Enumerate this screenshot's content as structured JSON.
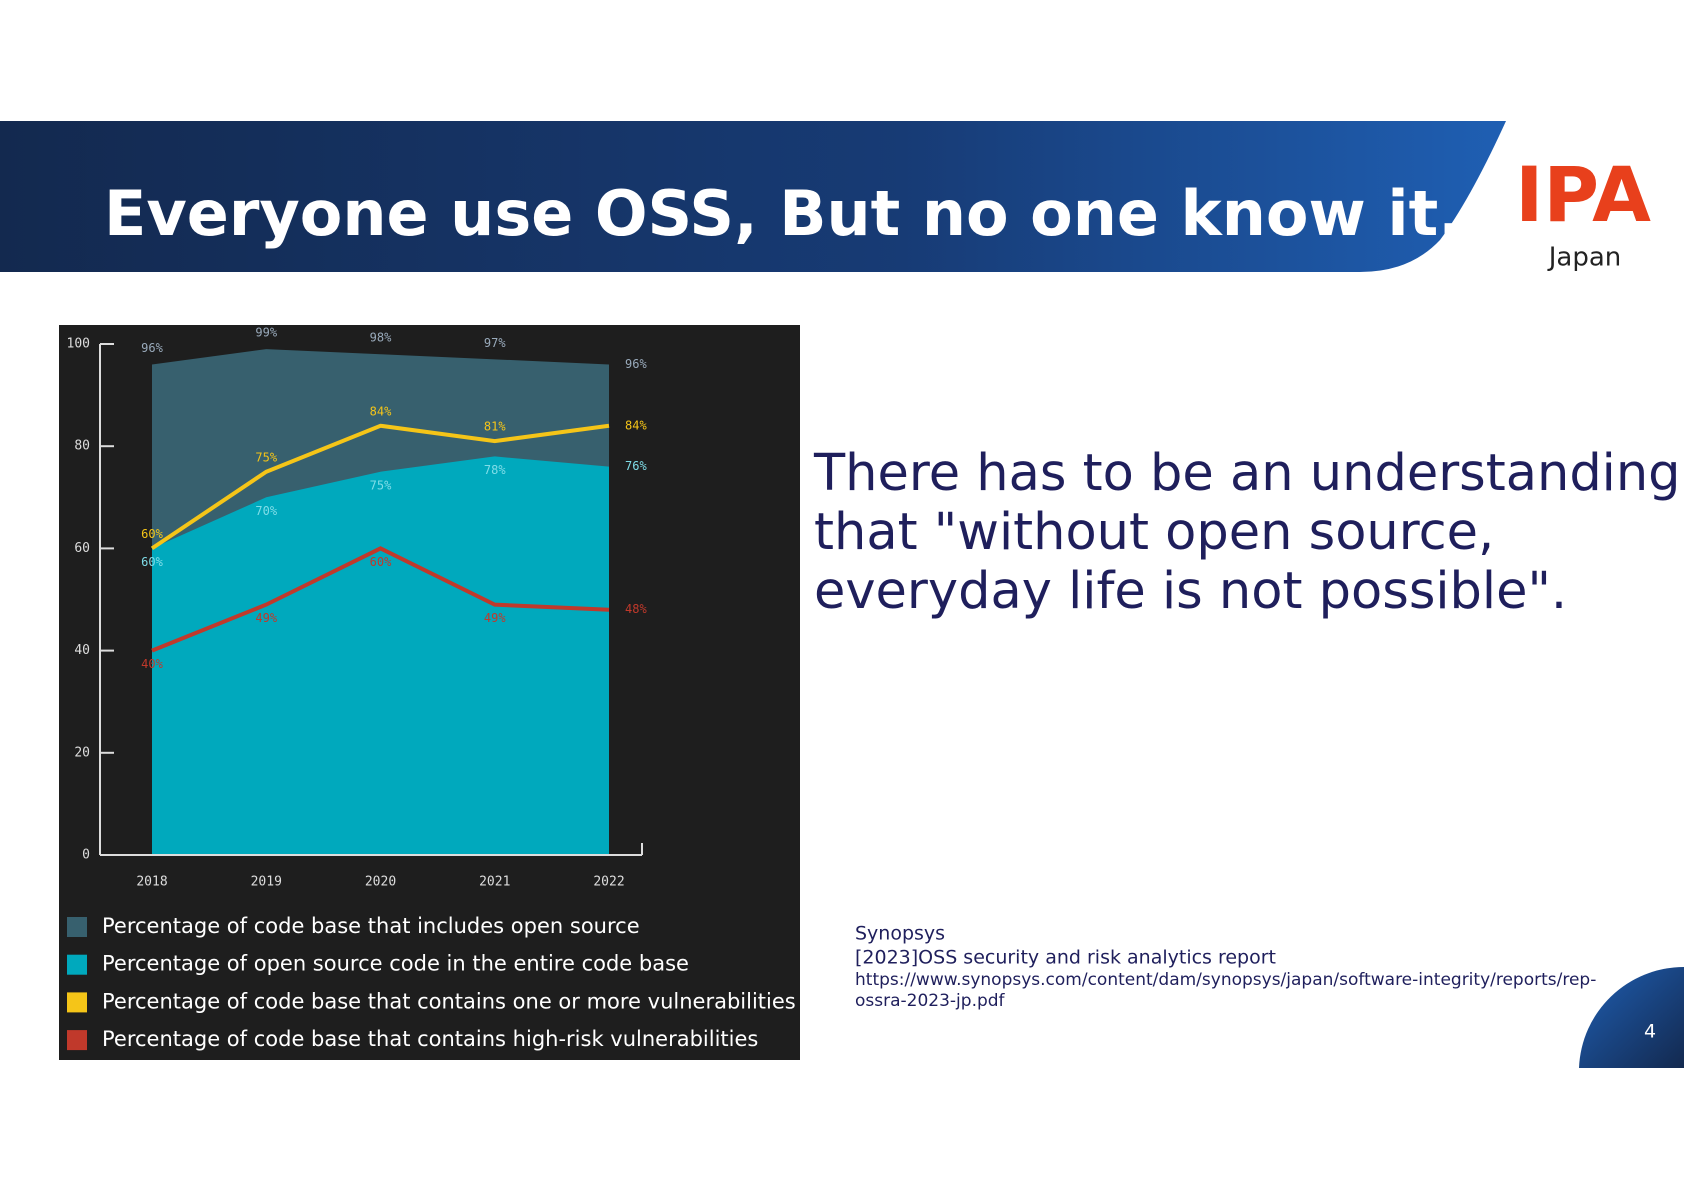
{
  "header": {
    "title": "Everyone use OSS, But no one know it.",
    "logo": "IPA",
    "logo_sub": "Japan"
  },
  "chart_data": {
    "type": "line",
    "categories": [
      "2018",
      "2019",
      "2020",
      "2021",
      "2022"
    ],
    "ylim": [
      0,
      100
    ],
    "yticks": [
      0,
      20,
      40,
      60,
      80,
      100
    ],
    "series": [
      {
        "name": "Percentage of code base that includes open source",
        "type": "area",
        "color": "#37606e",
        "values": [
          96,
          99,
          98,
          97,
          96
        ],
        "value_labels": [
          "96%",
          "99%",
          "98%",
          "97%",
          "96%"
        ]
      },
      {
        "name": "Percentage of open source code in the entire code base",
        "type": "area",
        "color": "#00a9bd",
        "values": [
          60,
          70,
          75,
          78,
          76
        ],
        "value_labels": [
          "60%",
          "70%",
          "75%",
          "78%",
          "76%"
        ]
      },
      {
        "name": "Percentage of code base that contains one or more vulnerabilities",
        "type": "line",
        "color": "#f5c518",
        "values": [
          60,
          75,
          84,
          81,
          84
        ],
        "value_labels": [
          "60%",
          "75%",
          "84%",
          "81%",
          "84%"
        ]
      },
      {
        "name": "Percentage of code base that contains high-risk vulnerabilities",
        "type": "line",
        "color": "#c0392b",
        "values": [
          40,
          49,
          60,
          49,
          48
        ],
        "value_labels": [
          "40%",
          "49%",
          "60%",
          "49%",
          "48%"
        ]
      }
    ]
  },
  "body": {
    "lines": [
      "There has to be an understanding",
      "that \"without open source,",
      "everyday life is not possible\"."
    ]
  },
  "source": {
    "lines": [
      "Synopsys",
      "[2023]OSS security and risk analytics report",
      "https://www.synopsys.com/content/dam/synopsys/japan/software-integrity/reports/rep-",
      "ossra-2023-jp.pdf"
    ]
  },
  "page_number": "4"
}
